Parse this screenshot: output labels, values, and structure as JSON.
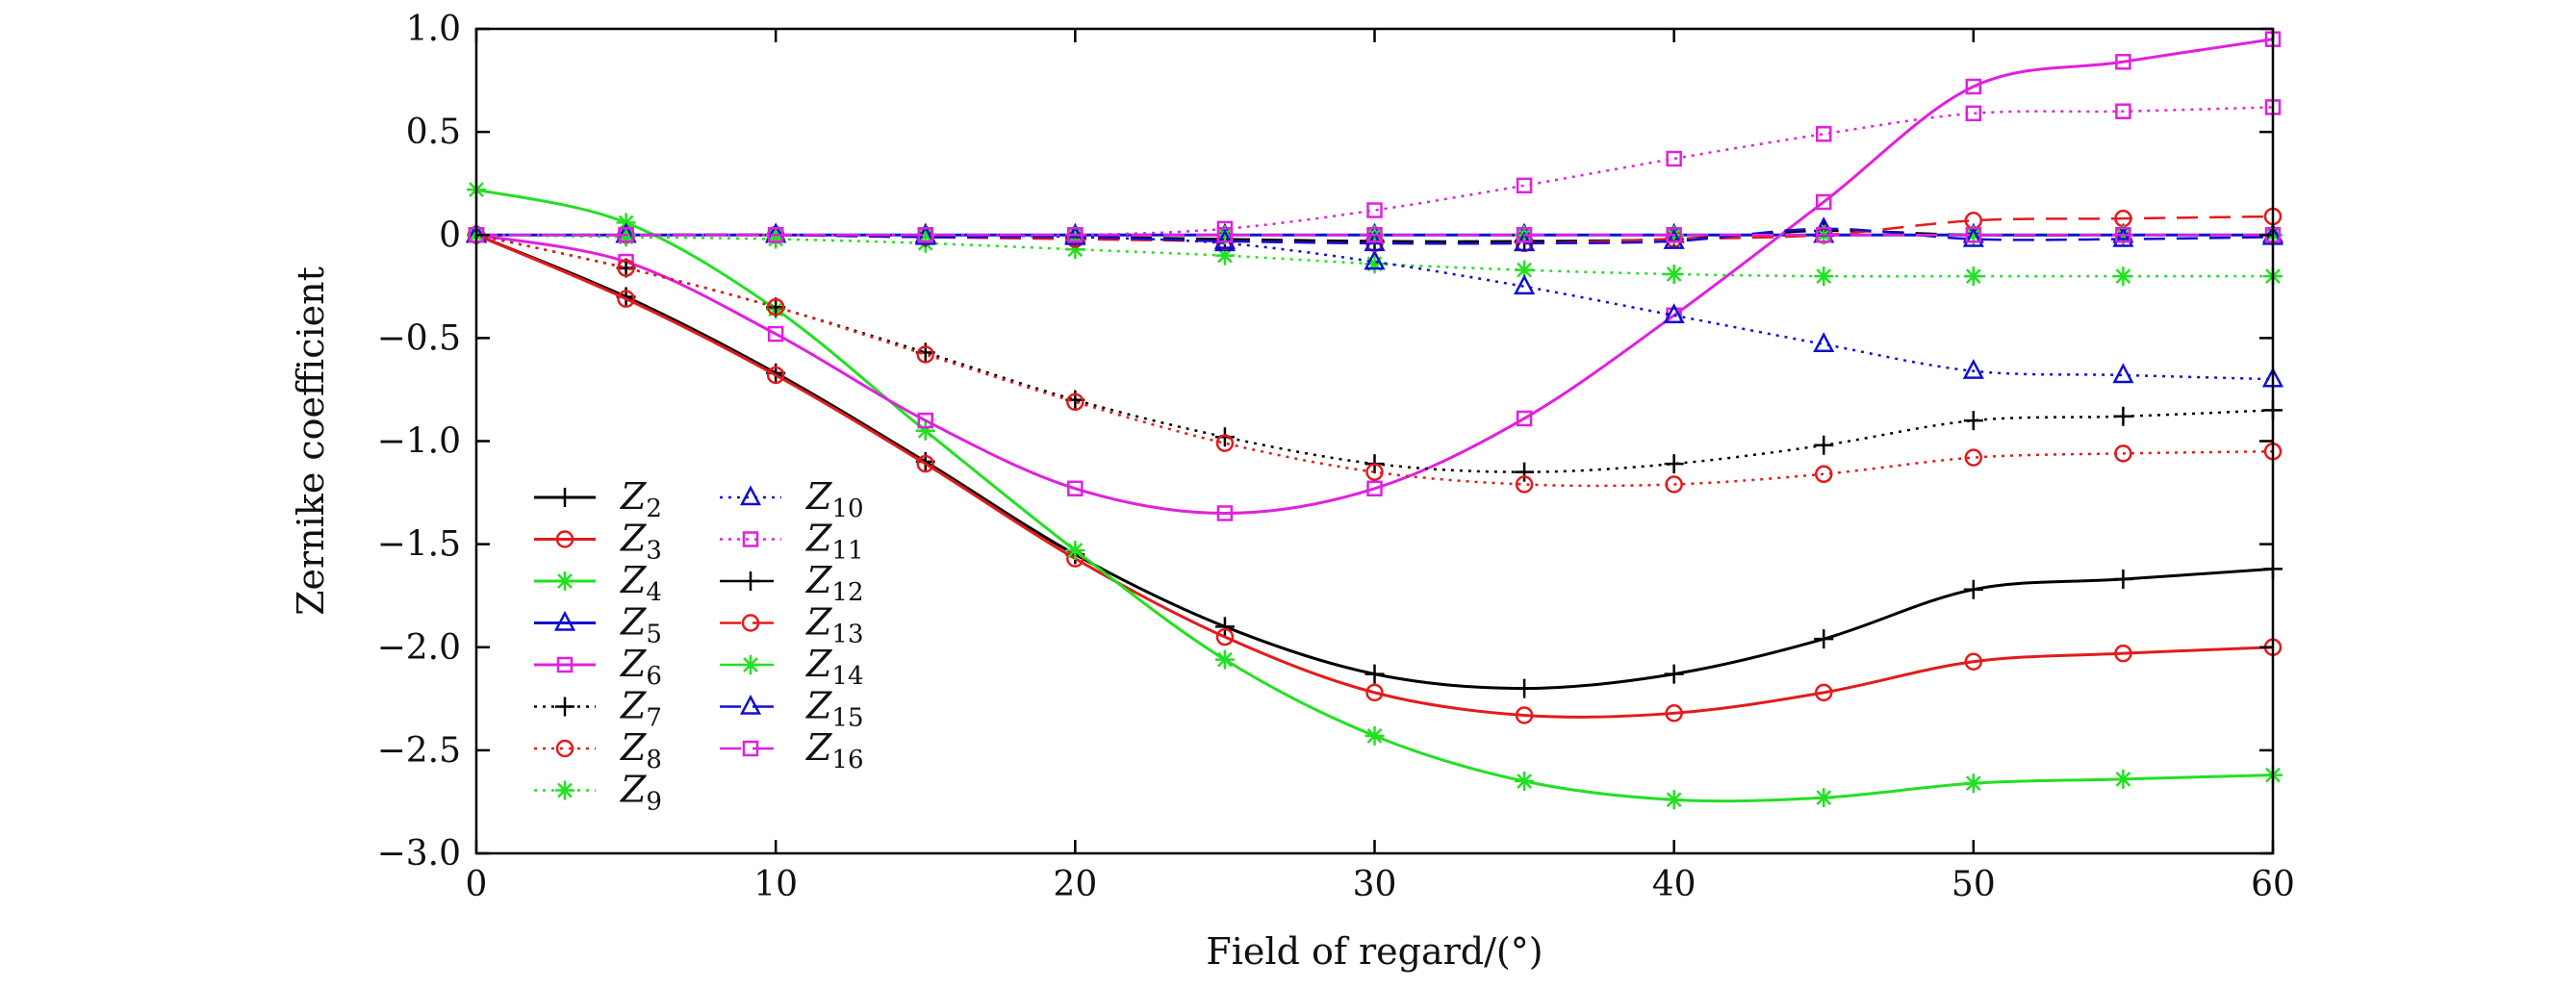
{
  "chart_data": {
    "type": "line",
    "xlabel": "Field of regard/(°)",
    "ylabel": "Zernike coefficient",
    "xlim": [
      0,
      60
    ],
    "ylim": [
      -3.0,
      1.0
    ],
    "x_ticks": [
      0,
      10,
      20,
      30,
      40,
      50,
      60
    ],
    "x_tick_labels": [
      "0",
      "10",
      "20",
      "30",
      "40",
      "50",
      "60"
    ],
    "y_ticks": [
      1.0,
      0.5,
      0,
      -0.5,
      -1.0,
      -1.5,
      -2.0,
      -2.5,
      -3.0
    ],
    "y_tick_labels": [
      "1.0",
      "0.5",
      "0",
      "−0.5",
      "−1.0",
      "−1.5",
      "−2.0",
      "−2.5",
      "−3.0"
    ],
    "grid": false,
    "legend_position": "lower-left",
    "x": [
      0,
      5,
      10,
      15,
      20,
      25,
      30,
      35,
      40,
      45,
      50,
      55,
      60
    ],
    "series": [
      {
        "name": "Z",
        "sub": "2",
        "color": "#000000",
        "dash": "solid",
        "marker": "plus",
        "values": [
          0,
          -0.3,
          -0.67,
          -1.1,
          -1.55,
          -1.9,
          -2.13,
          -2.2,
          -2.13,
          -1.96,
          -1.72,
          -1.67,
          -1.62
        ]
      },
      {
        "name": "Z",
        "sub": "3",
        "color": "#e41a1c",
        "dash": "solid",
        "marker": "circle",
        "values": [
          0,
          -0.31,
          -0.68,
          -1.11,
          -1.57,
          -1.95,
          -2.22,
          -2.33,
          -2.32,
          -2.22,
          -2.07,
          -2.03,
          -2.0
        ]
      },
      {
        "name": "Z",
        "sub": "4",
        "color": "#22e022",
        "dash": "solid",
        "marker": "star",
        "values": [
          0.22,
          0.06,
          -0.36,
          -0.95,
          -1.53,
          -2.06,
          -2.43,
          -2.65,
          -2.74,
          -2.73,
          -2.66,
          -2.64,
          -2.62
        ]
      },
      {
        "name": "Z",
        "sub": "5",
        "color": "#1010d0",
        "dash": "solid",
        "marker": "triangle",
        "values": [
          0,
          0,
          0,
          0,
          0,
          0,
          0,
          0,
          0,
          0,
          0,
          0,
          0
        ]
      },
      {
        "name": "Z",
        "sub": "6",
        "color": "#e020e0",
        "dash": "solid",
        "marker": "square",
        "values": [
          0,
          -0.13,
          -0.48,
          -0.9,
          -1.23,
          -1.35,
          -1.23,
          -0.89,
          -0.39,
          0.16,
          0.72,
          0.84,
          0.95
        ]
      },
      {
        "name": "Z",
        "sub": "7",
        "color": "#000000",
        "dash": "dotted",
        "marker": "plus",
        "values": [
          0,
          -0.16,
          -0.35,
          -0.57,
          -0.8,
          -0.98,
          -1.11,
          -1.15,
          -1.11,
          -1.02,
          -0.9,
          -0.88,
          -0.85
        ]
      },
      {
        "name": "Z",
        "sub": "8",
        "color": "#e41a1c",
        "dash": "dotted",
        "marker": "circle",
        "values": [
          0,
          -0.16,
          -0.35,
          -0.58,
          -0.81,
          -1.01,
          -1.15,
          -1.21,
          -1.21,
          -1.16,
          -1.08,
          -1.06,
          -1.05
        ]
      },
      {
        "name": "Z",
        "sub": "9",
        "color": "#22e022",
        "dash": "dotted",
        "marker": "star",
        "values": [
          0,
          -0.01,
          -0.02,
          -0.04,
          -0.07,
          -0.1,
          -0.14,
          -0.17,
          -0.19,
          -0.2,
          -0.2,
          -0.2,
          -0.2
        ]
      },
      {
        "name": "Z",
        "sub": "10",
        "color": "#1010d0",
        "dash": "dotted",
        "marker": "triangle",
        "values": [
          0,
          0,
          0,
          0,
          -0.01,
          -0.04,
          -0.13,
          -0.25,
          -0.39,
          -0.53,
          -0.66,
          -0.68,
          -0.7
        ]
      },
      {
        "name": "Z",
        "sub": "11",
        "color": "#e020e0",
        "dash": "dotted",
        "marker": "square",
        "values": [
          0,
          0,
          0,
          0,
          0,
          0.03,
          0.12,
          0.24,
          0.37,
          0.49,
          0.59,
          0.6,
          0.62
        ]
      },
      {
        "name": "Z",
        "sub": "12",
        "color": "#000000",
        "dash": "dashed",
        "marker": "plus",
        "values": [
          0,
          0,
          0,
          -0.01,
          -0.01,
          -0.02,
          -0.03,
          -0.03,
          -0.02,
          0.02,
          0.0,
          0.0,
          0.0
        ]
      },
      {
        "name": "Z",
        "sub": "13",
        "color": "#e41a1c",
        "dash": "dashed",
        "marker": "circle",
        "values": [
          0,
          0,
          0,
          -0.01,
          -0.02,
          -0.03,
          -0.04,
          -0.04,
          -0.02,
          0.0,
          0.07,
          0.08,
          0.09
        ]
      },
      {
        "name": "Z",
        "sub": "14",
        "color": "#22e022",
        "dash": "dashed",
        "marker": "star",
        "values": [
          0,
          0,
          0,
          0,
          0,
          0,
          0,
          0,
          0,
          0,
          0,
          0,
          0
        ]
      },
      {
        "name": "Z",
        "sub": "15",
        "color": "#1010d0",
        "dash": "dashed",
        "marker": "triangle",
        "values": [
          0,
          0,
          0,
          -0.01,
          -0.01,
          -0.03,
          -0.04,
          -0.04,
          -0.03,
          0.03,
          -0.02,
          -0.02,
          -0.01
        ]
      },
      {
        "name": "Z",
        "sub": "16",
        "color": "#e020e0",
        "dash": "dashed",
        "marker": "square",
        "values": [
          0,
          0,
          0,
          0,
          0,
          0,
          0,
          0,
          0,
          0,
          0,
          0,
          0
        ]
      }
    ]
  }
}
